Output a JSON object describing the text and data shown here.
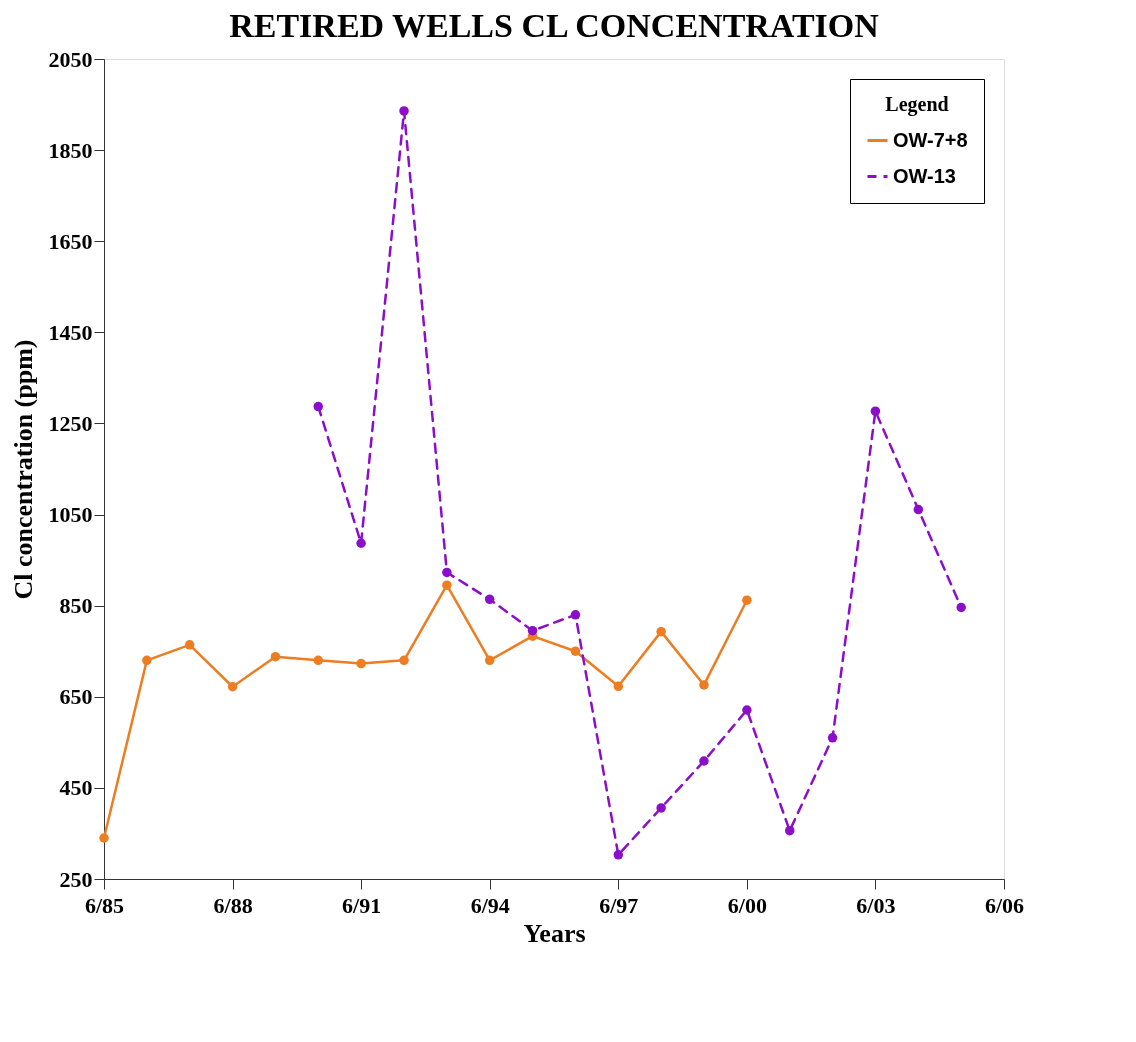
{
  "chart_data": {
    "type": "line",
    "title": "RETIRED WELLS CL CONCENTRATION",
    "xlabel": "Years",
    "ylabel": "Cl concentration (ppm)",
    "legend_title": "Legend",
    "x": [
      "1985-06",
      "1986-06",
      "1987-06",
      "1988-06",
      "1989-06",
      "1990-06",
      "1991-06",
      "1992-06",
      "1993-06",
      "1994-06",
      "1995-06",
      "1996-06",
      "1997-06",
      "1998-06",
      "1999-06",
      "2000-06",
      "2001-06",
      "2002-06",
      "2003-06",
      "2004-06",
      "2005-06"
    ],
    "series": [
      {
        "name": "OW-7+8",
        "color": "#ed7d22",
        "line_style": "solid",
        "values": [
          340,
          730,
          764,
          672,
          738,
          730,
          723,
          730,
          895,
          730,
          783,
          750,
          673,
          793,
          676,
          862,
          null,
          null,
          null,
          null,
          null
        ]
      },
      {
        "name": "OW-13",
        "color": "#8b0fc9",
        "line_style": "dashed",
        "values": [
          null,
          null,
          null,
          null,
          null,
          1287,
          987,
          1936,
          923,
          864,
          795,
          830,
          303,
          406,
          509,
          621,
          356,
          560,
          1277,
          1061,
          846
        ]
      }
    ],
    "xlim": [
      "1985-06",
      "2006-06"
    ],
    "xticks": [
      {
        "value": "1985-06",
        "label": "6/85"
      },
      {
        "value": "1988-06",
        "label": "6/88"
      },
      {
        "value": "1991-06",
        "label": "6/91"
      },
      {
        "value": "1994-06",
        "label": "6/94"
      },
      {
        "value": "1997-06",
        "label": "6/97"
      },
      {
        "value": "2000-06",
        "label": "6/00"
      },
      {
        "value": "2003-06",
        "label": "6/03"
      },
      {
        "value": "2006-06",
        "label": "6/06"
      }
    ],
    "ylim": [
      250,
      2050
    ],
    "yticks": [
      250,
      450,
      650,
      850,
      1050,
      1250,
      1450,
      1650,
      1850,
      2050
    ],
    "marker": "circle",
    "grid": false,
    "legend": "top right"
  }
}
